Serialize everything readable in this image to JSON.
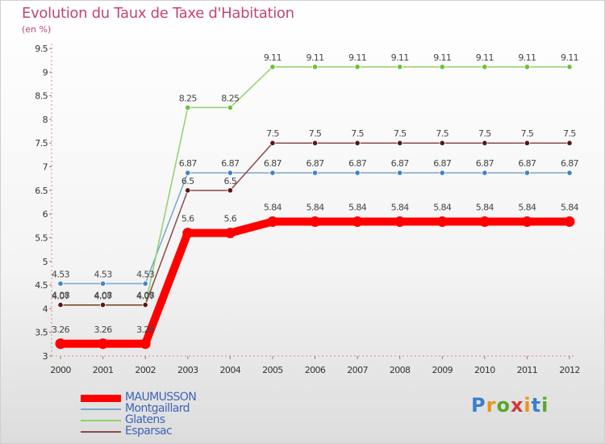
{
  "title": "Evolution du Taux de Taxe d'Habitation",
  "subtitle": "(en %)",
  "logo": {
    "text": "Proxiti",
    "colors": [
      "#3a7fd0",
      "#e8951c",
      "#5aa52c",
      "#d03a3a",
      "#e8951c",
      "#3a7fd0",
      "#5aa52c"
    ]
  },
  "chart_data": {
    "type": "line",
    "x": [
      "2000",
      "2001",
      "2002",
      "2003",
      "2004",
      "2005",
      "2006",
      "2007",
      "2008",
      "2009",
      "2010",
      "2011",
      "2012"
    ],
    "ylim": [
      3,
      9.5
    ],
    "yticks": [
      "3",
      "3.5",
      "4",
      "4.5",
      "5",
      "5.5",
      "6",
      "6.5",
      "7",
      "7.5",
      "8",
      "8.5",
      "9",
      "9.5"
    ],
    "grid": false,
    "legend_position": "bottom-left",
    "series": [
      {
        "name": "MAUMUSSON",
        "color": "#ff0000",
        "emphasis": true,
        "values": [
          3.26,
          3.26,
          3.26,
          5.6,
          5.6,
          5.84,
          5.84,
          5.84,
          5.84,
          5.84,
          5.84,
          5.84,
          5.84
        ],
        "labels": [
          "3.26",
          "3.26",
          "3.26",
          "5.6",
          "5.6",
          "5.84",
          "5.84",
          "5.84",
          "5.84",
          "5.84",
          "5.84",
          "5.84",
          "5.84"
        ]
      },
      {
        "name": "Montgaillard",
        "color": "#7aa6cc",
        "marker": "#3d85c6",
        "values": [
          4.53,
          4.53,
          4.53,
          6.87,
          6.87,
          6.87,
          6.87,
          6.87,
          6.87,
          6.87,
          6.87,
          6.87,
          6.87
        ],
        "labels": [
          "4.53",
          "4.53",
          "4.53",
          "6.87",
          "6.87",
          "6.87",
          "6.87",
          "6.87",
          "6.87",
          "6.87",
          "6.87",
          "6.87",
          "6.87"
        ]
      },
      {
        "name": "Glatens",
        "color": "#8fd16b",
        "marker": "#6cc13c",
        "values": [
          4.07,
          4.07,
          4.07,
          8.25,
          8.25,
          9.11,
          9.11,
          9.11,
          9.11,
          9.11,
          9.11,
          9.11,
          9.11
        ],
        "labels": [
          "4.07",
          "4.07",
          "4.07",
          "8.25",
          "8.25",
          "9.11",
          "9.11",
          "9.11",
          "9.11",
          "9.11",
          "9.11",
          "9.11",
          "9.11"
        ]
      },
      {
        "name": "Esparsac",
        "color": "#8a4a4a",
        "marker": "#5a1515",
        "values": [
          4.08,
          4.08,
          4.08,
          6.5,
          6.5,
          7.5,
          7.5,
          7.5,
          7.5,
          7.5,
          7.5,
          7.5,
          7.5
        ],
        "labels": [
          "4.08",
          "4.08",
          "4.08",
          "6.5",
          "6.5",
          "7.5",
          "7.5",
          "7.5",
          "7.5",
          "7.5",
          "7.5",
          "7.5",
          "7.5"
        ]
      }
    ]
  }
}
